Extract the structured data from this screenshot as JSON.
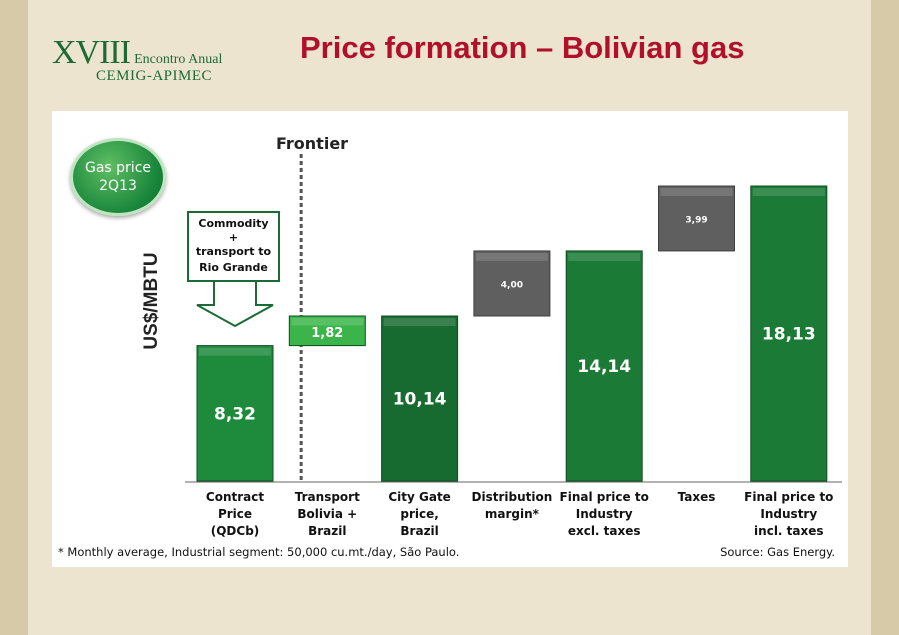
{
  "header": {
    "logo_number": "XVIII",
    "logo_event": "Encontro Anual",
    "logo_org": "CEMIG-APIMEC",
    "title": "Price formation – Bolivian gas"
  },
  "badge": {
    "line1": "Gas price",
    "line2": "2Q13"
  },
  "frontier_label": "Frontier",
  "callout": {
    "line1": "Commodity",
    "line2": "+",
    "line3": "transport to",
    "line4": "Rio Grande"
  },
  "chart_data": {
    "type": "bar",
    "subtype": "waterfall",
    "ylabel": "US$/MBTU",
    "categories": [
      [
        "Contract",
        "Price",
        "(QDCb)"
      ],
      [
        "Transport",
        "Bolivia +",
        "Brazil"
      ],
      [
        "City Gate",
        "price,",
        "Brazil"
      ],
      [
        "Distribution",
        "margin*"
      ],
      [
        "Final price to",
        "Industry",
        "excl. taxes"
      ],
      [
        "Taxes"
      ],
      [
        "Final price to",
        "Industry",
        "incl. taxes"
      ]
    ],
    "bars": [
      {
        "base": 0,
        "value": 8.32,
        "label": "8,32",
        "kind": "total",
        "color": "#1e8a3c"
      },
      {
        "base": 8.32,
        "value": 1.82,
        "label": "1,82",
        "kind": "increment",
        "color": "#3bb54a"
      },
      {
        "base": 0,
        "value": 10.14,
        "label": "10,14",
        "kind": "total",
        "color": "#176b30"
      },
      {
        "base": 10.14,
        "value": 4.0,
        "label": "4,00",
        "kind": "increment",
        "color": "#5f5f5f"
      },
      {
        "base": 0,
        "value": 14.14,
        "label": "14,14",
        "kind": "total",
        "color": "#1a7a36"
      },
      {
        "base": 14.14,
        "value": 3.99,
        "label": "3,99",
        "kind": "increment",
        "color": "#5f5f5f"
      },
      {
        "base": 0,
        "value": 18.13,
        "label": "18,13",
        "kind": "total",
        "color": "#1a7a36"
      }
    ],
    "ylim": [
      0,
      18.13
    ],
    "frontier_after_index": 1
  },
  "footnote": "*  Monthly average, Industrial segment:  50,000 cu.mt./day, São Paulo.",
  "source": "Source: Gas Energy."
}
